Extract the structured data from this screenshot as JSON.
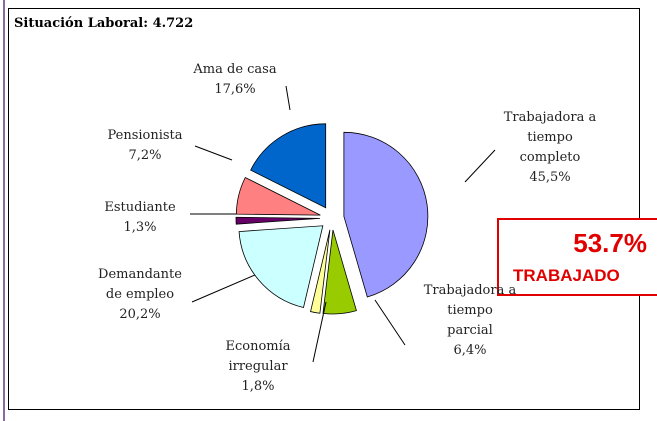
{
  "chart_data": {
    "type": "pie",
    "title": "Situación Laboral: 4.722",
    "categories": [
      "Trabajadora a\ntiempo\ncompleto",
      "Trabajadora a\ntiempo\nparcial",
      "Economía\nirregular",
      "Demandante\nde empleo",
      "Estudiante",
      "Pensionista",
      "Ama de casa"
    ],
    "values": [
      45.5,
      6.4,
      1.8,
      20.2,
      1.3,
      7.2,
      17.6
    ],
    "value_labels": [
      "45,5%",
      "6,4%",
      "1,8%",
      "20,2%",
      "1,3%",
      "7,2%",
      "17,6%"
    ],
    "colors": [
      "#9999ff",
      "#99cc00",
      "#ffff99",
      "#ccffff",
      "#660066",
      "#ff8080",
      "#0066cc"
    ],
    "annotation": {
      "value": "53.7%",
      "text": "TRABAJADO"
    }
  }
}
